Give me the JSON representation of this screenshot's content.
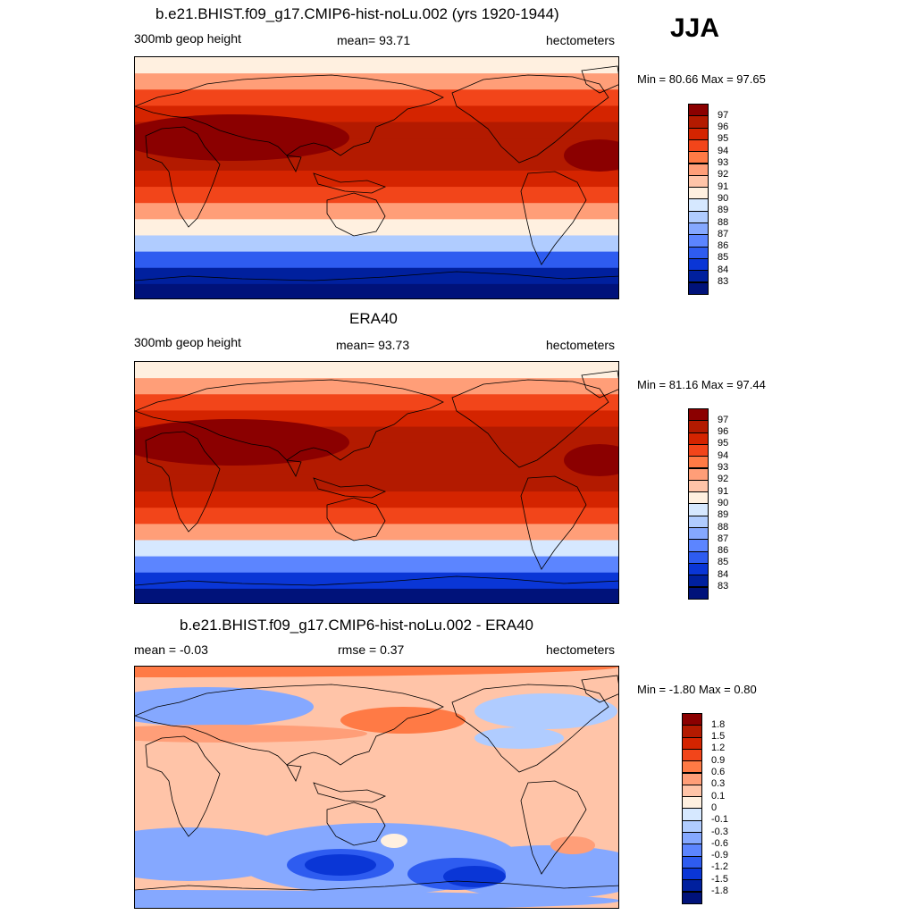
{
  "season": "JJA",
  "panels": [
    {
      "id": "model",
      "title": "b.e21.BHIST.f09_g17.CMIP6-hist-noLu.002 (yrs 1920-1944)",
      "left_label": "300mb geop height",
      "center_label": "mean=  93.71",
      "right_label": "hectometers",
      "minmax": "Min =  80.66 Max =  97.65",
      "colorbar_labels": [
        "97",
        "96",
        "95",
        "94",
        "93",
        "92",
        "91",
        "90",
        "89",
        "88",
        "87",
        "86",
        "85",
        "84",
        "83"
      ],
      "colors": [
        "#8b0000",
        "#b31a00",
        "#d42400",
        "#f2451a",
        "#ff7a45",
        "#ff9e78",
        "#ffc4a8",
        "#fff0e0",
        "#d6e8ff",
        "#b0ccff",
        "#85a8ff",
        "#5c85ff",
        "#2e5cf0",
        "#0a36d6",
        "#00209e",
        "#00127a"
      ]
    },
    {
      "id": "obs",
      "title": "ERA40",
      "left_label": "300mb geop height",
      "center_label": "mean=  93.73",
      "right_label": "hectometers",
      "minmax": "Min =  81.16 Max =  97.44",
      "colorbar_labels": [
        "97",
        "96",
        "95",
        "94",
        "93",
        "92",
        "91",
        "90",
        "89",
        "88",
        "87",
        "86",
        "85",
        "84",
        "83"
      ],
      "colors": [
        "#8b0000",
        "#b31a00",
        "#d42400",
        "#f2451a",
        "#ff7a45",
        "#ff9e78",
        "#ffc4a8",
        "#fff0e0",
        "#d6e8ff",
        "#b0ccff",
        "#85a8ff",
        "#5c85ff",
        "#2e5cf0",
        "#0a36d6",
        "#00209e",
        "#00127a"
      ]
    },
    {
      "id": "diff",
      "title": "b.e21.BHIST.f09_g17.CMIP6-hist-noLu.002 - ERA40",
      "left_label": "mean =  -0.03",
      "center_label": "rmse =   0.37",
      "right_label": "hectometers",
      "minmax": "Min =  -1.80 Max =   0.80",
      "colorbar_labels": [
        "1.8",
        "1.5",
        "1.2",
        "0.9",
        "0.6",
        "0.3",
        "0.1",
        "0",
        "-0.1",
        "-0.3",
        "-0.6",
        "-0.9",
        "-1.2",
        "-1.5",
        "-1.8"
      ],
      "colors": [
        "#8b0000",
        "#b31a00",
        "#d42400",
        "#f2451a",
        "#ff7a45",
        "#ff9e78",
        "#ffc4a8",
        "#fff0e0",
        "#d6e8ff",
        "#b0ccff",
        "#85a8ff",
        "#5c85ff",
        "#2e5cf0",
        "#0a36d6",
        "#00209e",
        "#00127a"
      ]
    }
  ],
  "chart_data": [
    {
      "type": "heatmap",
      "title": "b.e21.BHIST.f09_g17.CMIP6-hist-noLu.002 (yrs 1920-1944)",
      "variable": "300mb geop height",
      "units": "hectometers",
      "mean": 93.71,
      "min": 80.66,
      "max": 97.65,
      "contour_levels": [
        83,
        84,
        85,
        86,
        87,
        88,
        89,
        90,
        91,
        92,
        93,
        94,
        95,
        96,
        97
      ],
      "band_values_north_to_south": [
        90.5,
        92.5,
        94.5,
        95.5,
        96.5,
        96.5,
        96,
        95.5,
        94.5,
        92.5,
        90.5,
        88,
        85,
        83,
        82
      ]
    },
    {
      "type": "heatmap",
      "title": "ERA40",
      "variable": "300mb geop height",
      "units": "hectometers",
      "mean": 93.73,
      "min": 81.16,
      "max": 97.44,
      "contour_levels": [
        83,
        84,
        85,
        86,
        87,
        88,
        89,
        90,
        91,
        92,
        93,
        94,
        95,
        96,
        97
      ],
      "band_values_north_to_south": [
        90,
        92.5,
        94.5,
        95.5,
        96.3,
        96.5,
        96.2,
        96,
        95.5,
        94,
        92,
        89.5,
        86.5,
        84,
        82
      ]
    },
    {
      "type": "heatmap",
      "title": "b.e21.BHIST.f09_g17.CMIP6-hist-noLu.002 - ERA40",
      "units": "hectometers",
      "mean": -0.03,
      "rmse": 0.37,
      "min": -1.8,
      "max": 0.8,
      "contour_levels": [
        -1.8,
        -1.5,
        -1.2,
        -0.9,
        -0.6,
        -0.3,
        -0.1,
        0,
        0.1,
        0.3,
        0.6,
        0.9,
        1.2,
        1.5,
        1.8
      ]
    }
  ]
}
